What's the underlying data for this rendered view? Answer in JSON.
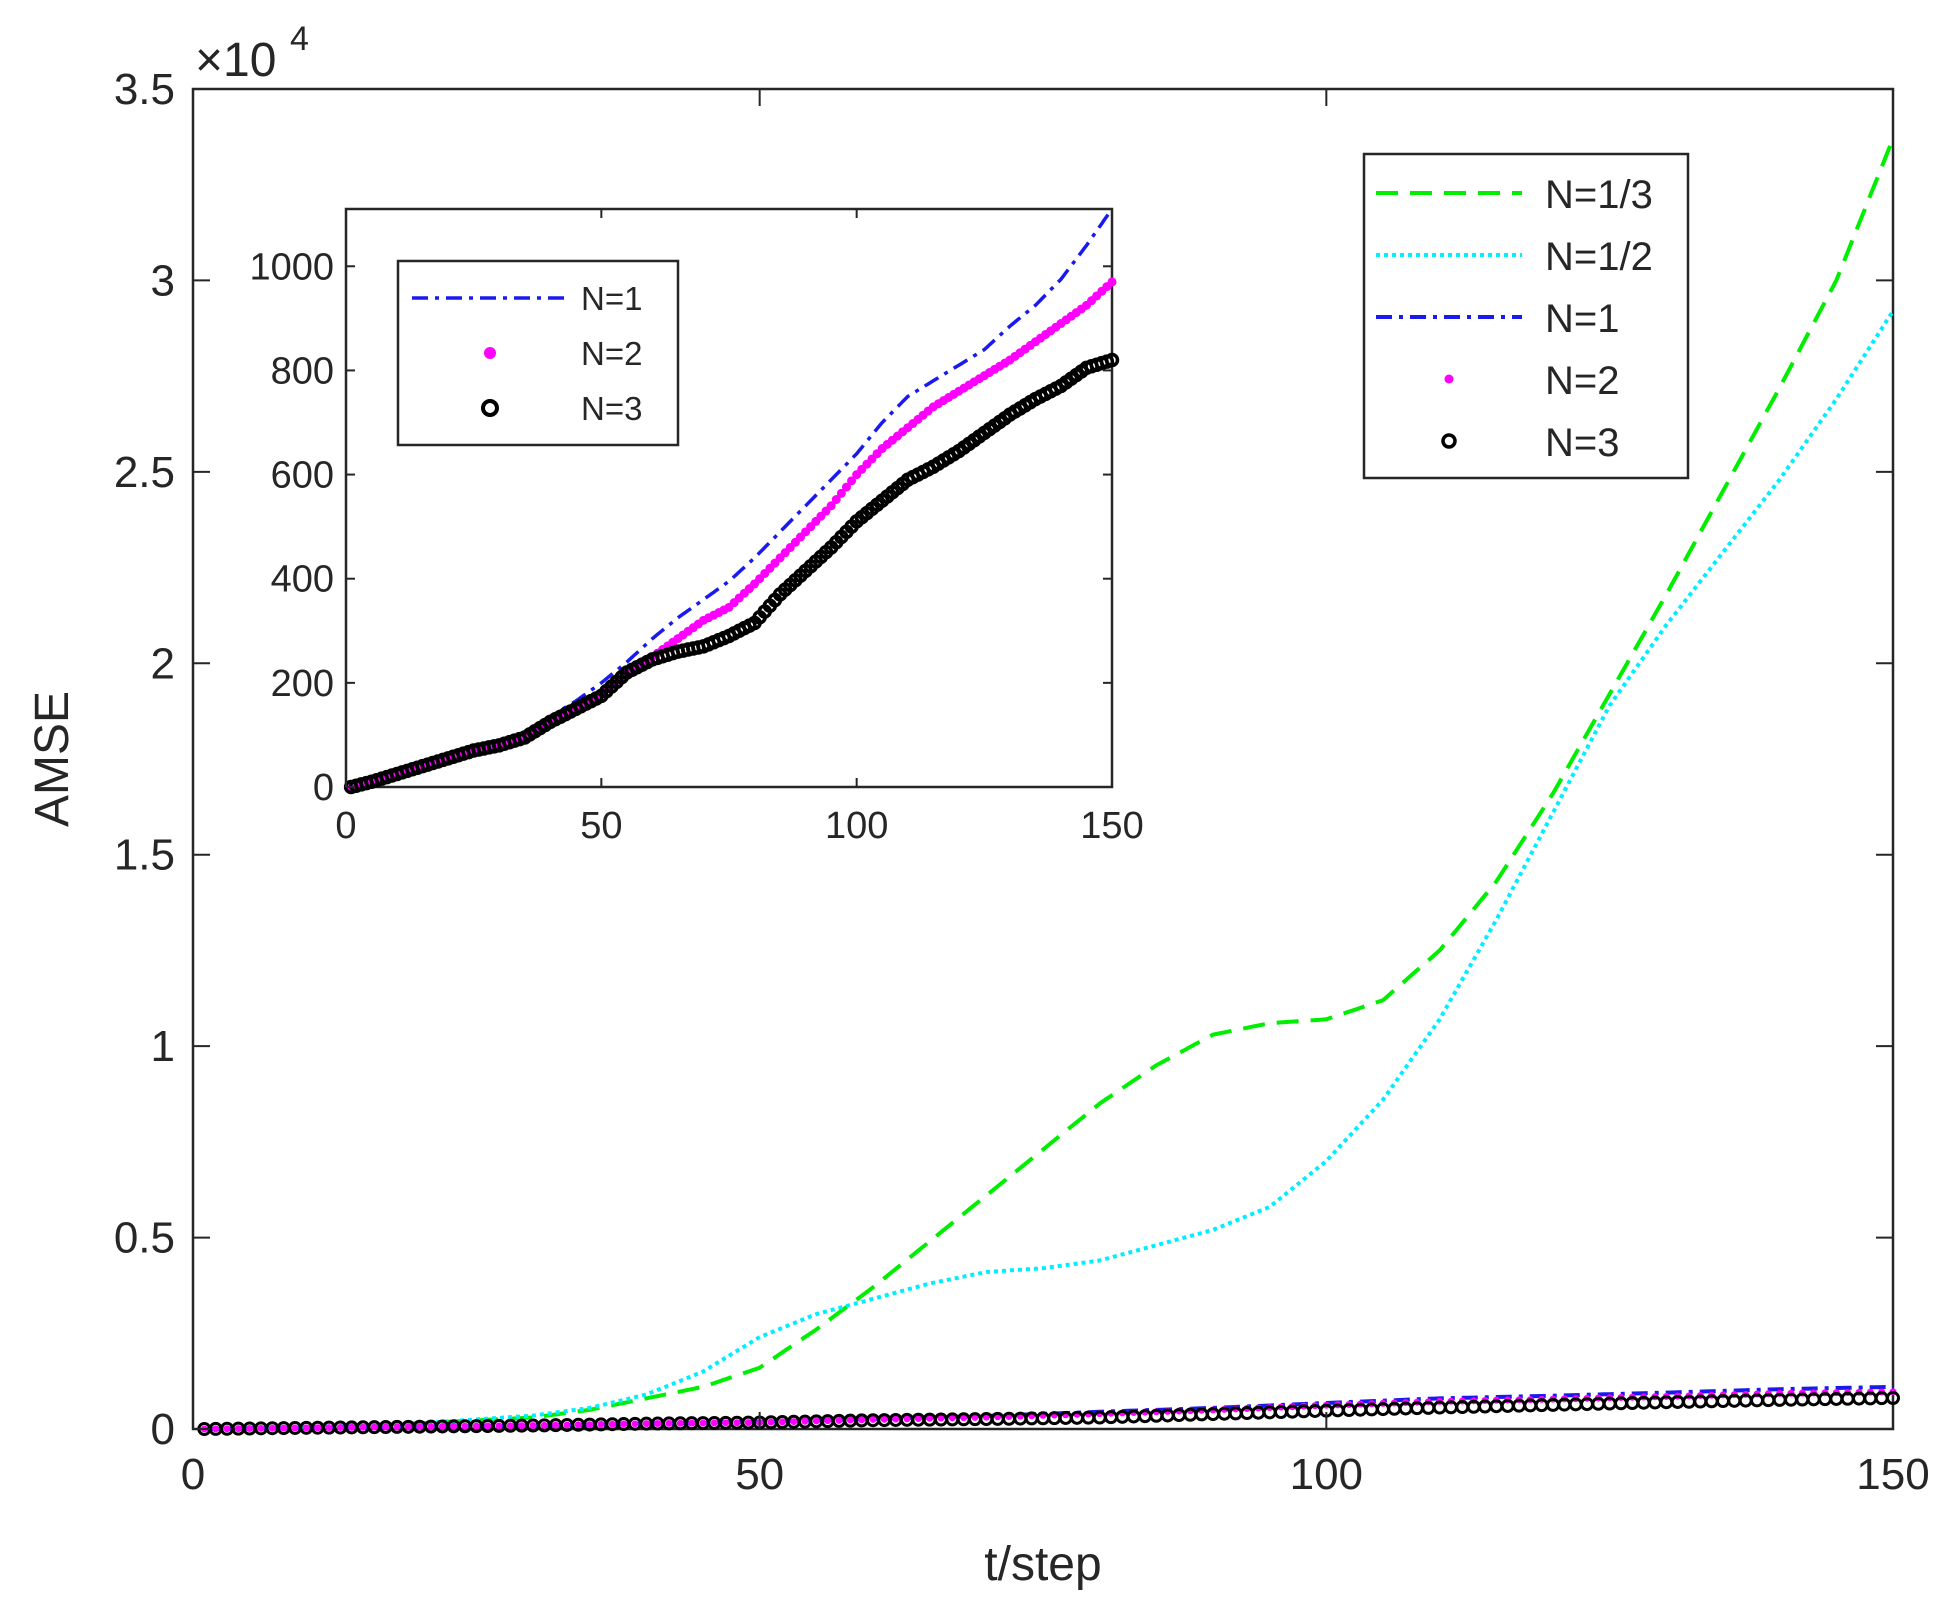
{
  "chart_data": {
    "main": {
      "type": "line",
      "xlabel": "t/step",
      "ylabel": "AMSE",
      "xlim": [
        0,
        150
      ],
      "ylim": [
        0,
        35000
      ],
      "y_exponent_label": "×10",
      "y_exponent_power": "4",
      "x_ticks": [
        "0",
        "50",
        "100",
        "150"
      ],
      "y_ticks": [
        "0",
        "0.5",
        "1",
        "1.5",
        "2",
        "2.5",
        "3",
        "3.5"
      ],
      "legend_position": "top-right",
      "series": [
        {
          "name": "N=1/3",
          "style": "dashed",
          "color": "#00ee00",
          "x": [
            1,
            10,
            20,
            30,
            35,
            40,
            45,
            50,
            55,
            60,
            65,
            70,
            75,
            80,
            85,
            90,
            95,
            100,
            105,
            110,
            115,
            120,
            125,
            130,
            135,
            140,
            145,
            150
          ],
          "y": [
            0,
            50,
            150,
            300,
            500,
            800,
            1100,
            1600,
            2600,
            3700,
            4900,
            6100,
            7300,
            8500,
            9500,
            10300,
            10600,
            10700,
            11200,
            12500,
            14300,
            16600,
            19200,
            21800,
            24500,
            27200,
            30000,
            33700
          ]
        },
        {
          "name": "N=1/2",
          "style": "dotted",
          "color": "#00eeff",
          "x": [
            1,
            10,
            20,
            30,
            35,
            40,
            45,
            50,
            55,
            60,
            65,
            70,
            75,
            80,
            85,
            90,
            95,
            100,
            105,
            110,
            115,
            120,
            125,
            130,
            135,
            140,
            145,
            150
          ],
          "y": [
            0,
            50,
            150,
            350,
            550,
            900,
            1500,
            2400,
            3000,
            3400,
            3800,
            4100,
            4200,
            4400,
            4800,
            5200,
            5800,
            7000,
            8600,
            10700,
            13300,
            16100,
            18900,
            21000,
            22900,
            24800,
            26900,
            29200
          ]
        },
        {
          "name": "N=1",
          "style": "dashdot",
          "color": "#1a1aee",
          "x": [
            1,
            10,
            20,
            30,
            40,
            50,
            60,
            70,
            80,
            90,
            100,
            110,
            120,
            130,
            140,
            150
          ],
          "y": [
            0,
            30,
            60,
            90,
            140,
            190,
            260,
            340,
            450,
            550,
            680,
            800,
            870,
            950,
            1040,
            1100
          ]
        },
        {
          "name": "N=2",
          "style": "dots",
          "color": "#ff00ff",
          "x": [
            1,
            10,
            20,
            30,
            40,
            50,
            60,
            70,
            80,
            90,
            100,
            110,
            120,
            130,
            140,
            150
          ],
          "y": [
            0,
            30,
            60,
            90,
            140,
            170,
            250,
            310,
            400,
            500,
            620,
            720,
            780,
            850,
            930,
            970
          ]
        },
        {
          "name": "N=3",
          "style": "circles",
          "color": "#000000",
          "x": [
            1,
            10,
            20,
            30,
            40,
            50,
            60,
            70,
            80,
            90,
            100,
            110,
            120,
            130,
            140,
            150
          ],
          "y": [
            0,
            30,
            60,
            90,
            140,
            170,
            230,
            260,
            300,
            390,
            480,
            560,
            630,
            700,
            760,
            810
          ]
        }
      ]
    },
    "inset": {
      "type": "line",
      "xlim": [
        0,
        150
      ],
      "ylim": [
        0,
        1110
      ],
      "x_ticks": [
        "0",
        "50",
        "100",
        "150"
      ],
      "y_ticks": [
        "0",
        "200",
        "400",
        "600",
        "800",
        "1000"
      ],
      "legend_position": "top-left",
      "series": [
        {
          "name": "N=1",
          "style": "dashdot",
          "color": "#1a1aee",
          "x": [
            1,
            5,
            10,
            15,
            20,
            25,
            30,
            35,
            40,
            45,
            50,
            55,
            60,
            65,
            70,
            75,
            80,
            85,
            90,
            95,
            100,
            105,
            110,
            115,
            120,
            125,
            130,
            135,
            140,
            145,
            150
          ],
          "y": [
            0,
            10,
            25,
            40,
            55,
            70,
            85,
            105,
            135,
            165,
            200,
            240,
            285,
            325,
            360,
            395,
            440,
            490,
            540,
            590,
            640,
            700,
            750,
            780,
            810,
            840,
            885,
            925,
            975,
            1040,
            1110
          ]
        },
        {
          "name": "N=2",
          "style": "dots",
          "color": "#ff00ff",
          "x": [
            1,
            5,
            10,
            15,
            20,
            25,
            30,
            35,
            40,
            45,
            50,
            55,
            60,
            65,
            70,
            75,
            80,
            85,
            90,
            95,
            100,
            105,
            110,
            115,
            120,
            125,
            130,
            135,
            140,
            145,
            150
          ],
          "y": [
            0,
            10,
            25,
            40,
            55,
            70,
            80,
            95,
            125,
            150,
            180,
            220,
            250,
            285,
            320,
            345,
            390,
            440,
            490,
            540,
            600,
            650,
            690,
            730,
            760,
            790,
            820,
            855,
            890,
            925,
            970
          ]
        },
        {
          "name": "N=3",
          "style": "circles",
          "color": "#000000",
          "x": [
            1,
            5,
            10,
            15,
            20,
            25,
            30,
            35,
            40,
            45,
            50,
            55,
            60,
            65,
            70,
            75,
            80,
            85,
            90,
            95,
            100,
            105,
            110,
            115,
            120,
            125,
            130,
            135,
            140,
            145,
            150
          ],
          "y": [
            0,
            10,
            25,
            40,
            55,
            70,
            80,
            95,
            125,
            150,
            175,
            220,
            245,
            260,
            270,
            290,
            315,
            370,
            415,
            460,
            510,
            550,
            590,
            615,
            645,
            680,
            715,
            745,
            770,
            805,
            820
          ]
        }
      ]
    }
  }
}
